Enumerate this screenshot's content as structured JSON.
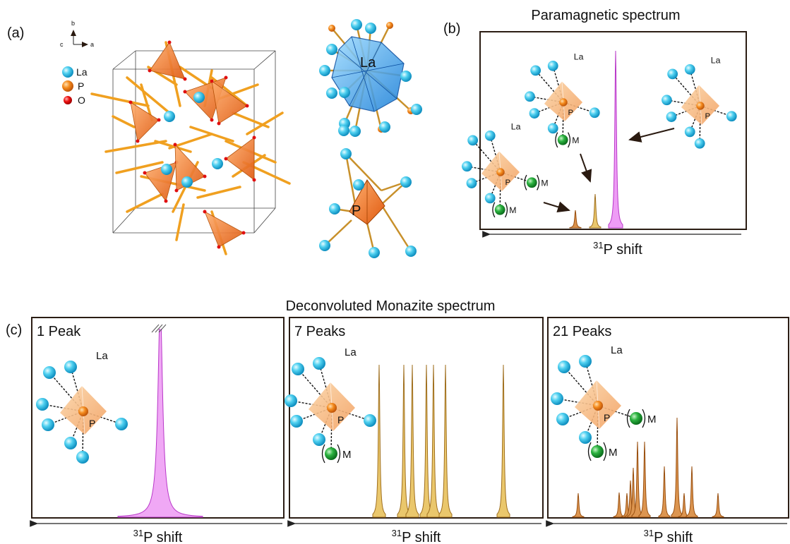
{
  "panel_a": {
    "label": "(a)",
    "axes": [
      "b",
      "c",
      "a"
    ],
    "legend": [
      "La",
      "P",
      "O"
    ],
    "polyhedron_labels": [
      "La",
      "P"
    ]
  },
  "panel_b": {
    "label": "(b)",
    "title": "Paramagnetic spectrum",
    "x_label": {
      "sup": "31",
      "main": "P shift"
    },
    "sites": [
      {
        "la": "La",
        "p": "P",
        "m": [
          "M",
          "M"
        ]
      },
      {
        "la": "La",
        "p": "P",
        "m": [
          "M"
        ]
      },
      {
        "la": "La",
        "p": "P",
        "m": []
      }
    ]
  },
  "panel_c": {
    "label": "(c)",
    "title": "Deconvoluted Monazite spectrum",
    "panels": [
      {
        "name": "1 Peak",
        "la": "La",
        "p": "P",
        "m": [],
        "x_label": {
          "sup": "31",
          "main": "P shift"
        }
      },
      {
        "name": "7 Peaks",
        "la": "La",
        "p": "P",
        "m": [
          "M"
        ],
        "x_label": {
          "sup": "31",
          "main": "P shift"
        }
      },
      {
        "name": "21 Peaks",
        "la": "La",
        "p": "P",
        "m": [
          "M",
          "M"
        ],
        "x_label": {
          "sup": "31",
          "main": "P shift"
        }
      }
    ]
  }
}
